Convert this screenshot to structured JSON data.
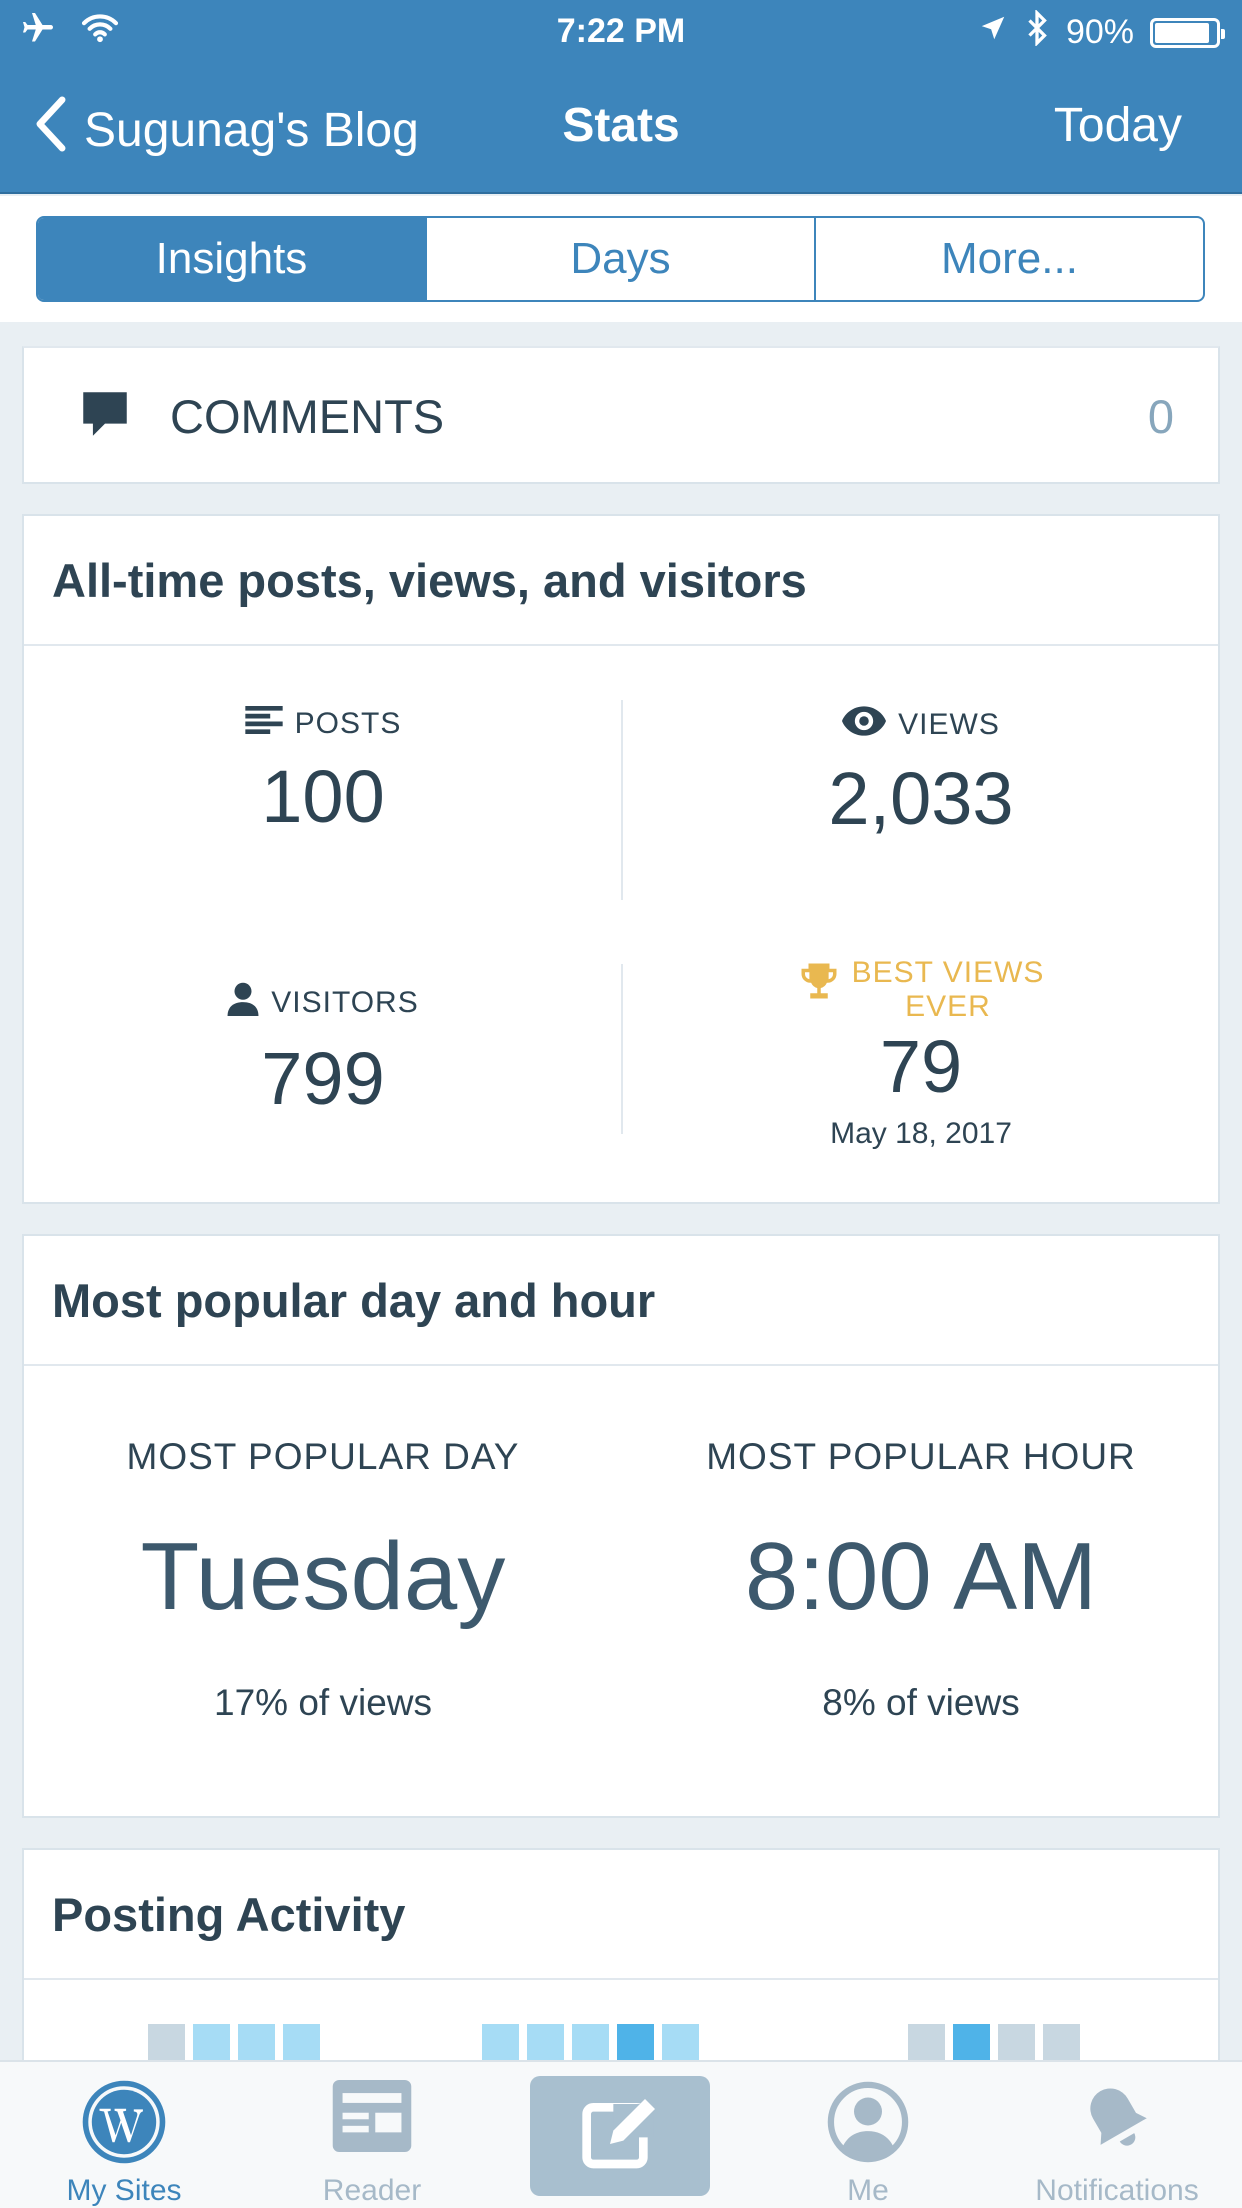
{
  "status_bar": {
    "time": "7:22 PM",
    "battery": "90%",
    "battery_level": 0.9
  },
  "nav": {
    "back_label": "Sugunag's Blog",
    "title": "Stats",
    "right_label": "Today"
  },
  "segments": [
    {
      "label": "Insights",
      "active": true
    },
    {
      "label": "Days",
      "active": false
    },
    {
      "label": "More...",
      "active": false
    }
  ],
  "comments": {
    "label": "COMMENTS",
    "count": "0"
  },
  "all_time": {
    "title": "All-time posts, views, and visitors",
    "posts": {
      "label": "POSTS",
      "value": "100"
    },
    "views": {
      "label": "VIEWS",
      "value": "2,033"
    },
    "visitors": {
      "label": "VISITORS",
      "value": "799"
    },
    "best": {
      "label_line1": "BEST VIEWS",
      "label_line2": "EVER",
      "value": "79",
      "date": "May 18, 2017"
    }
  },
  "popular": {
    "title": "Most popular day and hour",
    "day_label": "MOST POPULAR DAY",
    "day_value": "Tuesday",
    "day_pct": "17% of views",
    "hour_label": "MOST POPULAR HOUR",
    "hour_value": "8:00 AM",
    "hour_pct": "8% of views"
  },
  "activity": {
    "title": "Posting Activity",
    "colors": {
      "none": "#c8d7e1",
      "light": "#a6dcf5",
      "dark": "#4fb3e8"
    }
  },
  "tabbar": {
    "tabs": [
      {
        "label": "My Sites",
        "icon": "wordpress-icon",
        "active": true
      },
      {
        "label": "Reader",
        "icon": "reader-icon",
        "active": false
      },
      {
        "label": "Me",
        "icon": "me-icon",
        "active": false
      },
      {
        "label": "Notifications",
        "icon": "bell-icon",
        "active": false
      }
    ],
    "compose_icon": "compose-icon"
  }
}
